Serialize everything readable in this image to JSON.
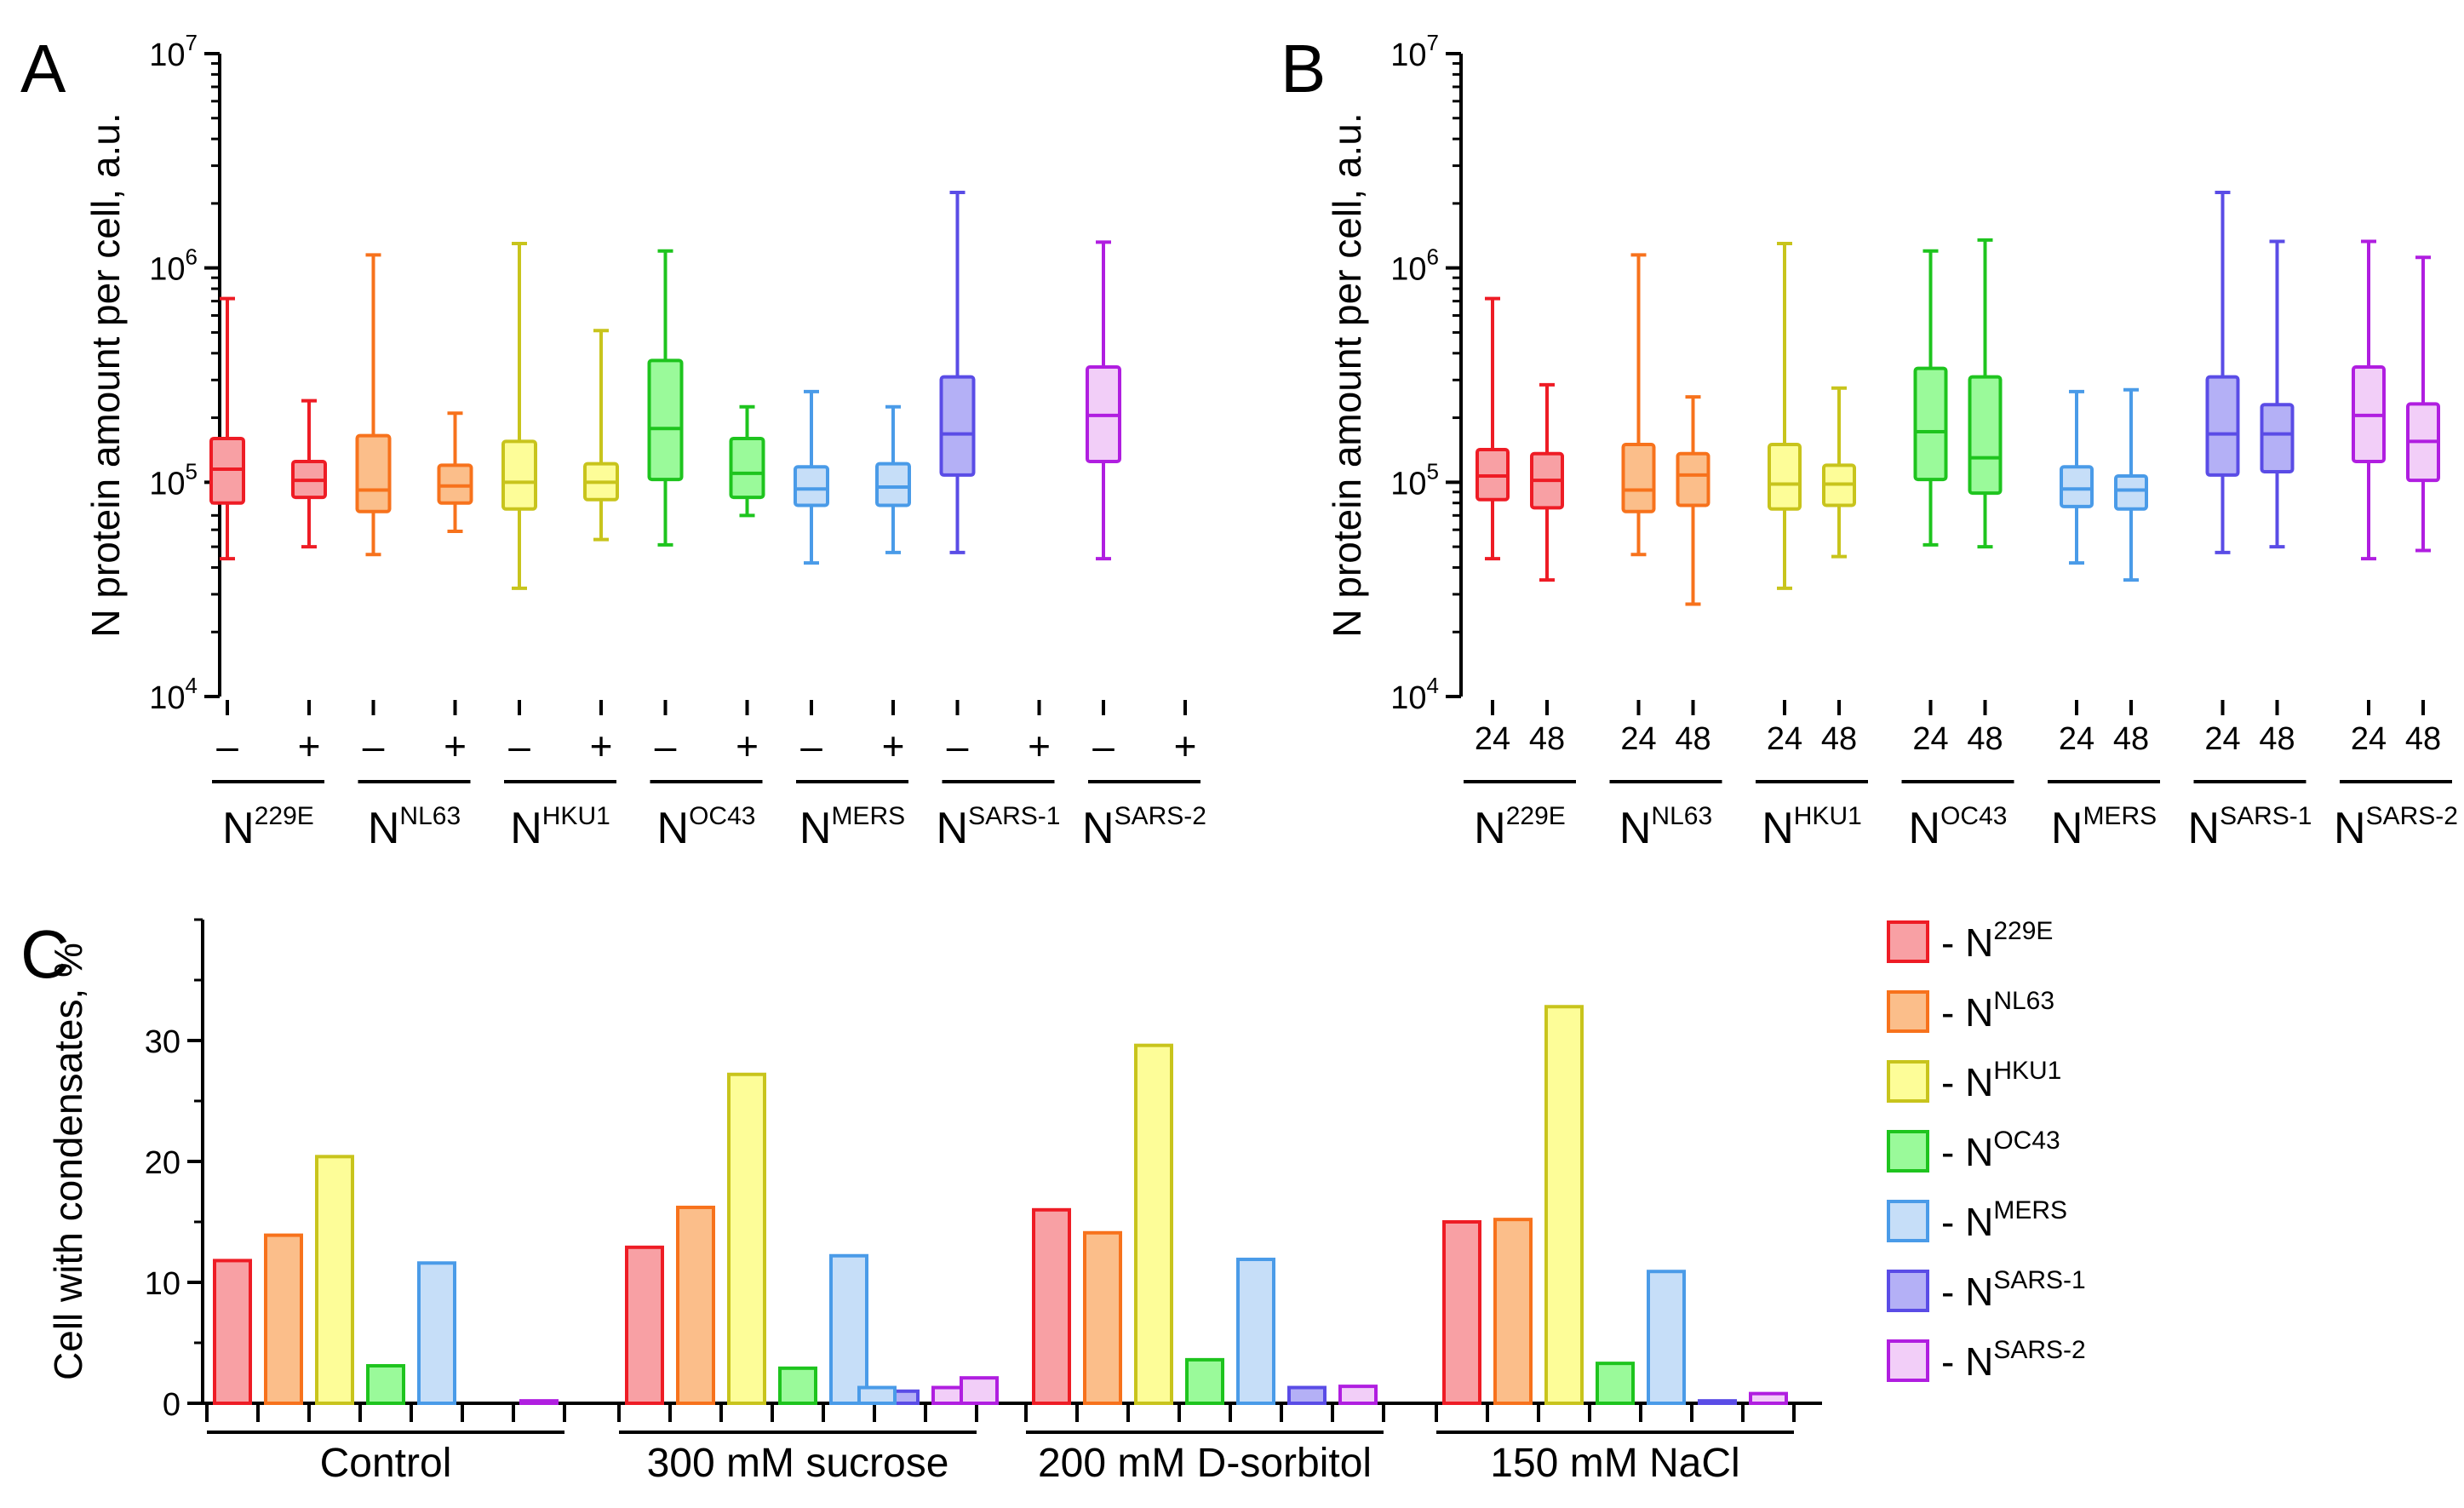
{
  "colors": {
    "N229E": "#ee1c25",
    "NNL63": "#f7721c",
    "NHKU1": "#c8c41c",
    "NOC43": "#1ec41e",
    "NMERS": "#4a9be8",
    "NSARS1": "#5a4ce6",
    "NSARS2": "#b01ee0"
  },
  "fills": {
    "N229E": "#f8a0a4",
    "NNL63": "#fbbe8a",
    "NHKU1": "#fdfd98",
    "NOC43": "#9afa9a",
    "NMERS": "#c6def8",
    "NSARS1": "#b4b0f6",
    "NSARS2": "#f2cef8"
  },
  "groups": [
    {
      "key": "N229E",
      "base": "N",
      "sup": "229E"
    },
    {
      "key": "NNL63",
      "base": "N",
      "sup": "NL63"
    },
    {
      "key": "NHKU1",
      "base": "N",
      "sup": "HKU1"
    },
    {
      "key": "NOC43",
      "base": "N",
      "sup": "OC43"
    },
    {
      "key": "NMERS",
      "base": "N",
      "sup": "MERS"
    },
    {
      "key": "NSARS1",
      "base": "N",
      "sup": "SARS-1"
    },
    {
      "key": "NSARS2",
      "base": "N",
      "sup": "SARS-2"
    }
  ],
  "chart_data": [
    {
      "panel": "A",
      "type": "box",
      "ylabel": "N protein amount per cell, a.u.",
      "yscale": "log",
      "ylim": [
        10000,
        10000000
      ],
      "yticks": [
        {
          "base": "10",
          "exp": "4"
        },
        {
          "base": "10",
          "exp": "5"
        },
        {
          "base": "10",
          "exp": "6"
        },
        {
          "base": "10",
          "exp": "7"
        }
      ],
      "sub_labels": [
        "–",
        "+"
      ],
      "boxes": [
        {
          "group": "N229E",
          "sub": "–",
          "min": 44000,
          "q1": 80000,
          "median": 115000,
          "q3": 160000,
          "max": 720000
        },
        {
          "group": "N229E",
          "sub": "+",
          "min": 50000,
          "q1": 85000,
          "median": 102000,
          "q3": 125000,
          "max": 240000
        },
        {
          "group": "NNL63",
          "sub": "–",
          "min": 46000,
          "q1": 73000,
          "median": 92000,
          "q3": 165000,
          "max": 1150000
        },
        {
          "group": "NNL63",
          "sub": "+",
          "min": 59000,
          "q1": 80000,
          "median": 96000,
          "q3": 120000,
          "max": 210000
        },
        {
          "group": "NHKU1",
          "sub": "–",
          "min": 32000,
          "q1": 75000,
          "median": 100000,
          "q3": 155000,
          "max": 1300000
        },
        {
          "group": "NHKU1",
          "sub": "+",
          "min": 54000,
          "q1": 83000,
          "median": 100000,
          "q3": 122000,
          "max": 510000
        },
        {
          "group": "NOC43",
          "sub": "–",
          "min": 51000,
          "q1": 103000,
          "median": 178000,
          "q3": 370000,
          "max": 1200000
        },
        {
          "group": "NOC43",
          "sub": "+",
          "min": 70000,
          "q1": 85000,
          "median": 110000,
          "q3": 160000,
          "max": 225000
        },
        {
          "group": "NMERS",
          "sub": "–",
          "min": 42000,
          "q1": 78000,
          "median": 93000,
          "q3": 118000,
          "max": 265000
        },
        {
          "group": "NMERS",
          "sub": "+",
          "min": 47000,
          "q1": 78000,
          "median": 95000,
          "q3": 122000,
          "max": 225000
        },
        {
          "group": "NSARS1",
          "sub": "–",
          "min": 47000,
          "q1": 108000,
          "median": 168000,
          "q3": 310000,
          "max": 2250000
        },
        {
          "group": "NSARS2",
          "sub": "–",
          "min": 44000,
          "q1": 125000,
          "median": 205000,
          "q3": 345000,
          "max": 1320000
        }
      ]
    },
    {
      "panel": "B",
      "type": "box",
      "ylabel": "N protein amount per cell, a.u.",
      "yscale": "log",
      "ylim": [
        10000,
        10000000
      ],
      "yticks": [
        {
          "base": "10",
          "exp": "4"
        },
        {
          "base": "10",
          "exp": "5"
        },
        {
          "base": "10",
          "exp": "6"
        },
        {
          "base": "10",
          "exp": "7"
        }
      ],
      "sub_labels": [
        "24",
        "48"
      ],
      "boxes": [
        {
          "group": "N229E",
          "sub": "24",
          "min": 44000,
          "q1": 83000,
          "median": 107000,
          "q3": 142000,
          "max": 720000
        },
        {
          "group": "N229E",
          "sub": "48",
          "min": 35000,
          "q1": 76000,
          "median": 102000,
          "q3": 136000,
          "max": 285000
        },
        {
          "group": "NNL63",
          "sub": "24",
          "min": 46000,
          "q1": 73000,
          "median": 92000,
          "q3": 150000,
          "max": 1150000
        },
        {
          "group": "NNL63",
          "sub": "48",
          "min": 27000,
          "q1": 78000,
          "median": 108000,
          "q3": 136000,
          "max": 250000
        },
        {
          "group": "NHKU1",
          "sub": "24",
          "min": 32000,
          "q1": 75000,
          "median": 98000,
          "q3": 150000,
          "max": 1300000
        },
        {
          "group": "NHKU1",
          "sub": "48",
          "min": 45000,
          "q1": 78000,
          "median": 98000,
          "q3": 120000,
          "max": 275000
        },
        {
          "group": "NOC43",
          "sub": "24",
          "min": 51000,
          "q1": 103000,
          "median": 172000,
          "q3": 340000,
          "max": 1200000
        },
        {
          "group": "NOC43",
          "sub": "48",
          "min": 50000,
          "q1": 89000,
          "median": 130000,
          "q3": 310000,
          "max": 1350000
        },
        {
          "group": "NMERS",
          "sub": "24",
          "min": 42000,
          "q1": 77000,
          "median": 93000,
          "q3": 118000,
          "max": 265000
        },
        {
          "group": "NMERS",
          "sub": "48",
          "min": 35000,
          "q1": 75000,
          "median": 92000,
          "q3": 107000,
          "max": 270000
        },
        {
          "group": "NSARS1",
          "sub": "24",
          "min": 47000,
          "q1": 108000,
          "median": 168000,
          "q3": 310000,
          "max": 2250000
        },
        {
          "group": "NSARS1",
          "sub": "48",
          "min": 50000,
          "q1": 112000,
          "median": 168000,
          "q3": 230000,
          "max": 1330000
        },
        {
          "group": "NSARS2",
          "sub": "24",
          "min": 44000,
          "q1": 125000,
          "median": 205000,
          "q3": 345000,
          "max": 1330000
        },
        {
          "group": "NSARS2",
          "sub": "48",
          "min": 48000,
          "q1": 102000,
          "median": 155000,
          "q3": 232000,
          "max": 1120000
        }
      ]
    },
    {
      "panel": "C",
      "type": "bar",
      "ylabel": "Cell with condensates, %",
      "ylim": [
        0,
        40
      ],
      "yticks": [
        "0",
        "10",
        "20",
        "30"
      ],
      "categories": [
        "Control",
        "300 mM sucrose",
        "200 mM D-sorbitol",
        "150 mM NaCl"
      ],
      "series": [
        {
          "name": "N229E",
          "values": [
            11.8,
            12.9,
            16.0,
            15.0
          ]
        },
        {
          "name": "NNL63",
          "values": [
            13.9,
            16.2,
            14.1,
            15.2
          ]
        },
        {
          "name": "NHKU1",
          "values": [
            20.4,
            27.2,
            29.6,
            32.8
          ]
        },
        {
          "name": "NOC43",
          "values": [
            3.1,
            2.9,
            3.6,
            3.3
          ]
        },
        {
          "name": "NMERS",
          "values": [
            11.6,
            12.2,
            11.9,
            10.9
          ]
        },
        {
          "name": "NSARS1",
          "values": [
            0,
            1.0,
            1.3,
            0.2
          ]
        },
        {
          "name": "NSARS2",
          "values": [
            0.2,
            1.3,
            1.4,
            0.8
          ]
        }
      ],
      "extra_bars": [
        {
          "category": "300 mM sucrose",
          "series": "NMERS",
          "value": 1.3
        },
        {
          "category": "300 mM sucrose",
          "series": "NSARS2",
          "value": 2.1
        }
      ],
      "legend": [
        {
          "series": "N229E",
          "prefix": "- N",
          "sup": "229E"
        },
        {
          "series": "NNL63",
          "prefix": "- N",
          "sup": "NL63"
        },
        {
          "series": "NHKU1",
          "prefix": "- N",
          "sup": "HKU1"
        },
        {
          "series": "NOC43",
          "prefix": "- N",
          "sup": "OC43"
        },
        {
          "series": "NMERS",
          "prefix": "- N",
          "sup": "MERS"
        },
        {
          "series": "NSARS1",
          "prefix": "- N",
          "sup": "SARS-1"
        },
        {
          "series": "NSARS2",
          "prefix": "- N",
          "sup": "SARS-2"
        }
      ],
      "legend_position": "right"
    }
  ]
}
